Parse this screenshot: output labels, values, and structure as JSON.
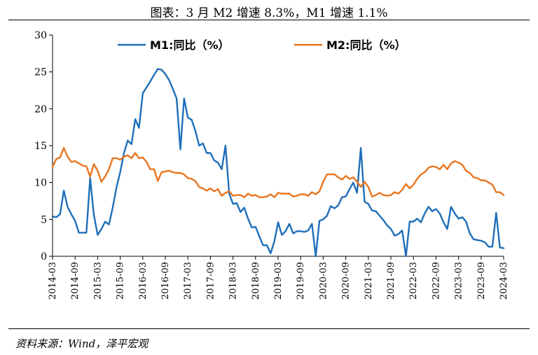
{
  "header": {
    "title": "图表：3 月 M2 增速 8.3%，M1 增速 1.1%"
  },
  "footer": {
    "source": "资料来源：Wind，泽平宏观"
  },
  "chart_data": {
    "type": "line",
    "title": "图表：3 月 M2 增速 8.3%，M1 增速 1.1%",
    "xlabel": "",
    "ylabel": "",
    "ylim": [
      0,
      30
    ],
    "yticks": [
      0,
      5,
      10,
      15,
      20,
      25,
      30
    ],
    "grid": false,
    "legend_position": "top",
    "x_tick_labels": [
      "2014-03",
      "2014-09",
      "2015-03",
      "2015-09",
      "2016-03",
      "2016-09",
      "2017-03",
      "2017-09",
      "2018-03",
      "2018-09",
      "2019-03",
      "2019-09",
      "2020-03",
      "2020-09",
      "2021-03",
      "2021-09",
      "2022-03",
      "2022-09",
      "2023-03",
      "2023-09",
      "2024-03"
    ],
    "x": [
      "2014-03",
      "2014-04",
      "2014-05",
      "2014-06",
      "2014-07",
      "2014-08",
      "2014-09",
      "2014-10",
      "2014-11",
      "2014-12",
      "2015-01",
      "2015-02",
      "2015-03",
      "2015-04",
      "2015-05",
      "2015-06",
      "2015-07",
      "2015-08",
      "2015-09",
      "2015-10",
      "2015-11",
      "2015-12",
      "2016-01",
      "2016-02",
      "2016-03",
      "2016-04",
      "2016-05",
      "2016-06",
      "2016-07",
      "2016-08",
      "2016-09",
      "2016-10",
      "2016-11",
      "2016-12",
      "2017-01",
      "2017-02",
      "2017-03",
      "2017-04",
      "2017-05",
      "2017-06",
      "2017-07",
      "2017-08",
      "2017-09",
      "2017-10",
      "2017-11",
      "2017-12",
      "2018-01",
      "2018-02",
      "2018-03",
      "2018-04",
      "2018-05",
      "2018-06",
      "2018-07",
      "2018-08",
      "2018-09",
      "2018-10",
      "2018-11",
      "2018-12",
      "2019-01",
      "2019-02",
      "2019-03",
      "2019-04",
      "2019-05",
      "2019-06",
      "2019-07",
      "2019-08",
      "2019-09",
      "2019-10",
      "2019-11",
      "2019-12",
      "2020-01",
      "2020-02",
      "2020-03",
      "2020-04",
      "2020-05",
      "2020-06",
      "2020-07",
      "2020-08",
      "2020-09",
      "2020-10",
      "2020-11",
      "2020-12",
      "2021-01",
      "2021-02",
      "2021-03",
      "2021-04",
      "2021-05",
      "2021-06",
      "2021-07",
      "2021-08",
      "2021-09",
      "2021-10",
      "2021-11",
      "2021-12",
      "2022-01",
      "2022-02",
      "2022-03",
      "2022-04",
      "2022-05",
      "2022-06",
      "2022-07",
      "2022-08",
      "2022-09",
      "2022-10",
      "2022-11",
      "2022-12",
      "2023-01",
      "2023-02",
      "2023-03",
      "2023-04",
      "2023-05",
      "2023-06",
      "2023-07",
      "2023-08",
      "2023-09",
      "2023-10",
      "2023-11",
      "2023-12",
      "2024-01",
      "2024-02",
      "2024-03"
    ],
    "series": [
      {
        "name": "M1:同比（%）",
        "color": "#1f6fb9",
        "values": [
          5.4,
          5.3,
          5.7,
          8.9,
          6.7,
          5.7,
          4.8,
          3.2,
          3.2,
          3.2,
          10.6,
          5.6,
          2.9,
          3.7,
          4.7,
          4.3,
          6.6,
          9.3,
          11.4,
          14.0,
          15.7,
          15.2,
          18.6,
          17.4,
          22.1,
          22.9,
          23.7,
          24.6,
          25.4,
          25.3,
          24.7,
          23.9,
          22.7,
          21.4,
          14.5,
          21.4,
          18.8,
          18.5,
          17.0,
          15.0,
          15.3,
          14.0,
          14.0,
          13.0,
          12.7,
          11.8,
          15.0,
          8.5,
          7.1,
          7.2,
          6.0,
          6.6,
          5.1,
          3.9,
          4.0,
          2.7,
          1.5,
          1.5,
          0.4,
          2.0,
          4.6,
          2.9,
          3.4,
          4.4,
          3.1,
          3.4,
          3.4,
          3.3,
          3.5,
          4.4,
          0.0,
          4.8,
          5.0,
          5.5,
          6.8,
          6.5,
          6.9,
          8.0,
          8.1,
          9.1,
          10.0,
          8.6,
          14.7,
          7.4,
          7.1,
          6.2,
          6.1,
          5.5,
          4.9,
          4.2,
          3.7,
          2.8,
          3.0,
          3.5,
          -1.9,
          4.7,
          4.7,
          5.1,
          4.6,
          5.8,
          6.7,
          6.1,
          6.4,
          5.8,
          4.6,
          3.7,
          6.7,
          5.8,
          5.1,
          5.3,
          4.7,
          3.1,
          2.3,
          2.2,
          2.1,
          1.9,
          1.3,
          1.3,
          5.9,
          1.2,
          1.1
        ]
      },
      {
        "name": "M2:同比（%）",
        "color": "#e8751f",
        "values": [
          12.1,
          13.2,
          13.4,
          14.7,
          13.5,
          12.8,
          12.9,
          12.6,
          12.3,
          12.2,
          10.8,
          12.5,
          11.6,
          10.1,
          10.8,
          11.8,
          13.3,
          13.3,
          13.1,
          13.5,
          13.7,
          13.3,
          14.0,
          13.3,
          13.4,
          12.8,
          11.8,
          11.8,
          10.2,
          11.4,
          11.5,
          11.6,
          11.4,
          11.3,
          11.3,
          11.1,
          10.6,
          10.5,
          10.2,
          9.4,
          9.2,
          8.9,
          9.2,
          8.8,
          9.1,
          8.2,
          8.6,
          8.8,
          8.2,
          8.3,
          8.3,
          8.0,
          8.5,
          8.2,
          8.3,
          8.0,
          8.0,
          8.1,
          8.4,
          8.0,
          8.6,
          8.5,
          8.5,
          8.5,
          8.1,
          8.2,
          8.4,
          8.4,
          8.2,
          8.7,
          8.4,
          8.8,
          10.1,
          11.1,
          11.1,
          11.1,
          10.7,
          10.4,
          10.9,
          10.5,
          10.7,
          10.1,
          9.4,
          10.1,
          9.4,
          8.1,
          8.3,
          8.6,
          8.3,
          8.2,
          8.3,
          8.7,
          8.5,
          9.0,
          9.8,
          9.2,
          9.7,
          10.5,
          11.1,
          11.4,
          12.0,
          12.2,
          12.1,
          11.8,
          12.4,
          11.8,
          12.6,
          12.9,
          12.7,
          12.4,
          11.6,
          11.3,
          10.7,
          10.6,
          10.3,
          10.3,
          10.0,
          9.7,
          8.7,
          8.7,
          8.3
        ]
      }
    ]
  }
}
